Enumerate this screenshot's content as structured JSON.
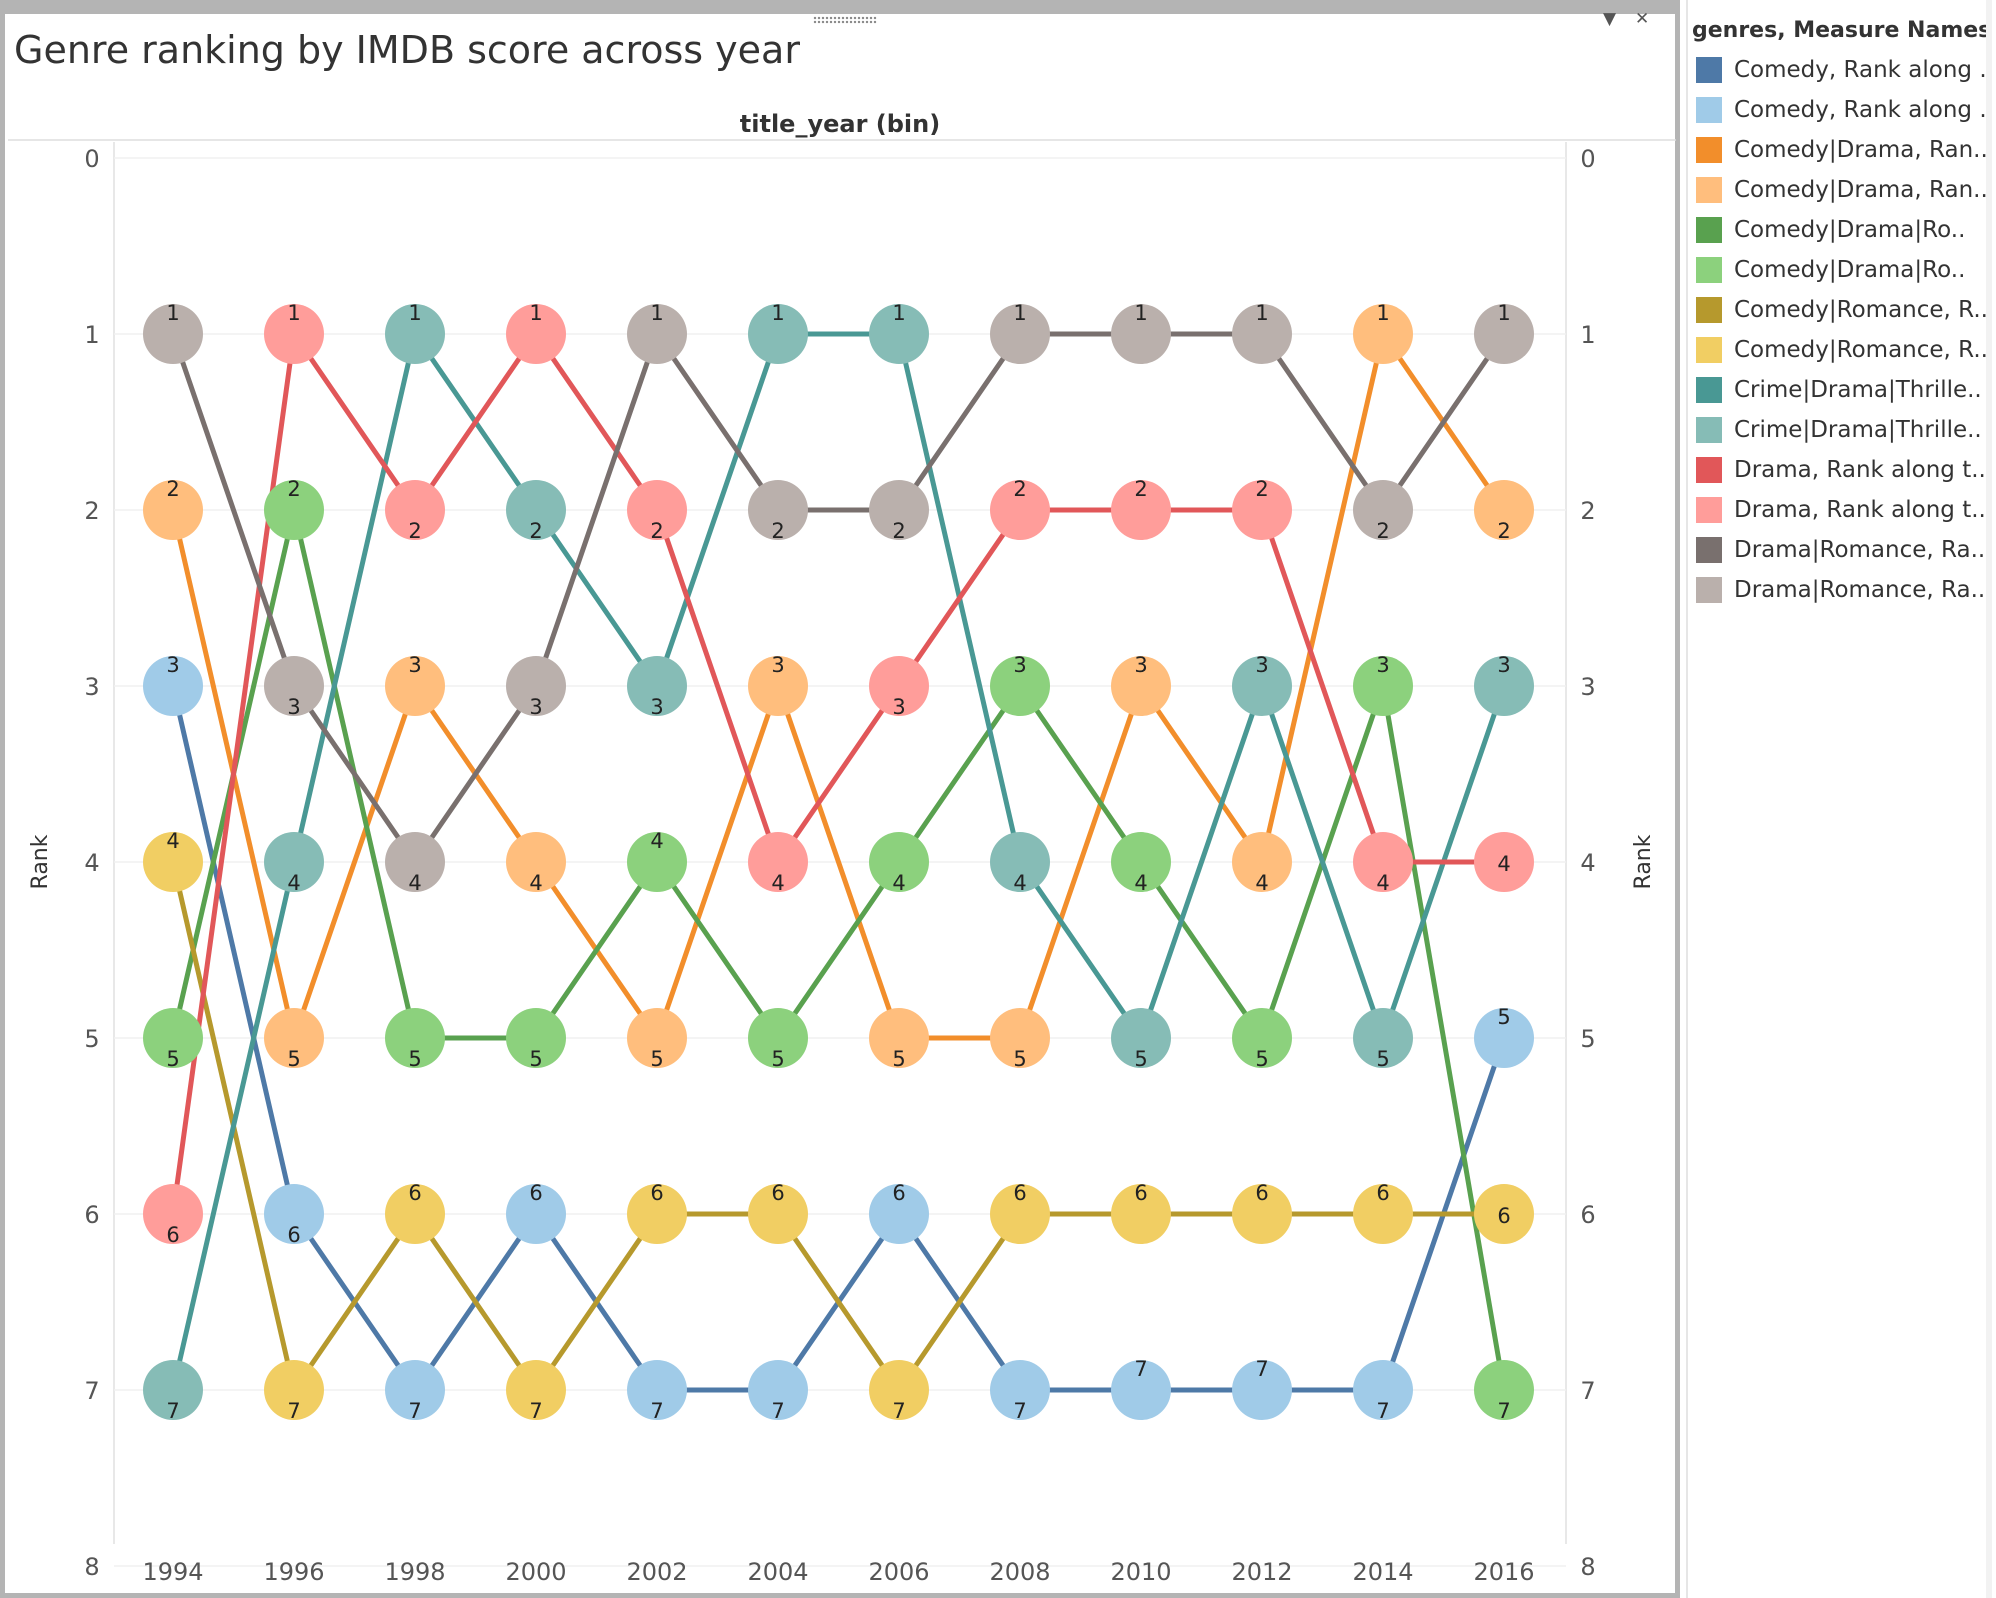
{
  "title": "Genre ranking by IMDB score across year",
  "legend": {
    "title": "genres, Measure Names",
    "items": [
      {
        "label": "Comedy, Rank along ..",
        "color": "#4e79a7"
      },
      {
        "label": "Comedy, Rank along ..",
        "color": "#a0cbe8"
      },
      {
        "label": "Comedy|Drama, Ran..",
        "color": "#f28e2b"
      },
      {
        "label": "Comedy|Drama, Ran..",
        "color": "#ffbe7d"
      },
      {
        "label": "Comedy|Drama|Ro..",
        "color": "#59a14f"
      },
      {
        "label": "Comedy|Drama|Ro..",
        "color": "#8cd17d"
      },
      {
        "label": "Comedy|Romance, R..",
        "color": "#b6992d"
      },
      {
        "label": "Comedy|Romance, R..",
        "color": "#f1ce63"
      },
      {
        "label": "Crime|Drama|Thrille..",
        "color": "#499894"
      },
      {
        "label": "Crime|Drama|Thrille..",
        "color": "#86bcb6"
      },
      {
        "label": "Drama, Rank along t..",
        "color": "#e15759"
      },
      {
        "label": "Drama, Rank along t..",
        "color": "#ff9d9a"
      },
      {
        "label": "Drama|Romance, Ra..",
        "color": "#79706e"
      },
      {
        "label": "Drama|Romance, Ra..",
        "color": "#bab0ac"
      }
    ]
  },
  "chart_data": {
    "type": "line",
    "title": "Genre ranking by IMDB score across year",
    "header_label": "title_year (bin)",
    "ylabel": "Rank",
    "ylabel_right": "Rank",
    "y_reversed": true,
    "ylim": [
      0,
      8
    ],
    "yticks": [
      "0",
      "1",
      "2",
      "3",
      "4",
      "5",
      "6",
      "7",
      "8"
    ],
    "x": [
      "1994",
      "1996",
      "1998",
      "2000",
      "2002",
      "2004",
      "2006",
      "2008",
      "2010",
      "2012",
      "2014",
      "2016"
    ],
    "series": [
      {
        "genre": "Comedy",
        "line_color": "#4e79a7",
        "point_color": "#a0cbe8",
        "values": [
          3,
          6,
          7,
          6,
          7,
          7,
          6,
          7,
          7,
          7,
          7,
          5
        ]
      },
      {
        "genre": "Comedy|Drama",
        "line_color": "#f28e2b",
        "point_color": "#ffbe7d",
        "values": [
          2,
          5,
          3,
          4,
          5,
          3,
          5,
          5,
          3,
          4,
          1,
          2
        ]
      },
      {
        "genre": "Comedy|Drama|Romance",
        "line_color": "#59a14f",
        "point_color": "#8cd17d",
        "values": [
          5,
          2,
          5,
          5,
          4,
          5,
          4,
          3,
          4,
          5,
          3,
          7
        ]
      },
      {
        "genre": "Comedy|Romance",
        "line_color": "#b6992d",
        "point_color": "#f1ce63",
        "values": [
          4,
          7,
          6,
          7,
          6,
          6,
          7,
          6,
          6,
          6,
          6,
          6
        ]
      },
      {
        "genre": "Crime|Drama|Thriller",
        "line_color": "#499894",
        "point_color": "#86bcb6",
        "values": [
          7,
          4,
          1,
          2,
          3,
          1,
          1,
          4,
          5,
          3,
          5,
          3
        ]
      },
      {
        "genre": "Drama",
        "line_color": "#e15759",
        "point_color": "#ff9d9a",
        "values": [
          6,
          1,
          2,
          1,
          2,
          4,
          3,
          2,
          2,
          2,
          4,
          4
        ]
      },
      {
        "genre": "Drama|Romance",
        "line_color": "#79706e",
        "point_color": "#bab0ac",
        "values": [
          1,
          3,
          4,
          3,
          1,
          2,
          2,
          1,
          1,
          1,
          2,
          1
        ]
      }
    ]
  }
}
